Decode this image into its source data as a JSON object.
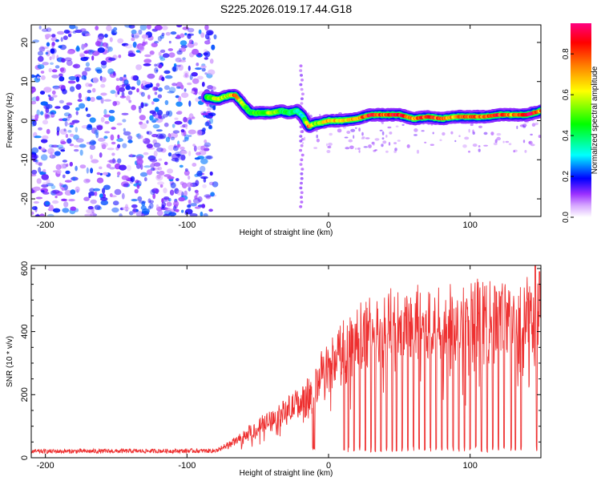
{
  "title": "S225.2026.019.17.44.G18",
  "chart_data": [
    {
      "type": "heatmap",
      "xlabel": "Height of straight line (km)",
      "ylabel": "Frequency (Hz)",
      "xlim": [
        -210,
        150
      ],
      "ylim": [
        -24.5,
        24.5
      ],
      "x_ticks": [
        -200,
        -100,
        0,
        100
      ],
      "y_ticks": [
        -20,
        -10,
        0,
        10,
        20
      ],
      "colorbar": {
        "label": "Normalized spectral amplitude",
        "range": [
          0,
          0.95
        ],
        "ticks": [
          0.0,
          0.2,
          0.4,
          0.6,
          0.8
        ],
        "colors": [
          "#ffffff",
          "#d7a8ff",
          "#9b30ff",
          "#0000ff",
          "#00ffff",
          "#00ff00",
          "#ffff00",
          "#ff8000",
          "#ff0000",
          "#ff0080"
        ]
      },
      "noise_region": {
        "x": [
          -210,
          -80
        ],
        "amplitude": [
          0.05,
          0.25
        ]
      },
      "vertical_feature": {
        "x": -19,
        "y": [
          -22,
          15
        ]
      },
      "ridge": {
        "x": [
          -86,
          -78,
          -70,
          -66,
          -60,
          -55,
          -48,
          -40,
          -34,
          -28,
          -22,
          -18,
          -14,
          -10,
          -5,
          0,
          10,
          20,
          30,
          40,
          50,
          60,
          70,
          80,
          90,
          100,
          110,
          120,
          130,
          140,
          150
        ],
        "y": [
          6,
          5.5,
          6.5,
          6.5,
          4,
          2,
          2,
          2,
          2.5,
          2,
          2.5,
          1,
          -1.5,
          -0.8,
          -0.5,
          0,
          0,
          0.5,
          1.5,
          1.5,
          1.5,
          0.5,
          1,
          0.5,
          1,
          1,
          1,
          1.5,
          1.5,
          1.5,
          2.5
        ],
        "amplitude": [
          0.45,
          0.6,
          0.55,
          0.85,
          0.5,
          0.45,
          0.5,
          0.55,
          0.45,
          0.4,
          0.35,
          0.3,
          0.85,
          0.5,
          0.55,
          0.7,
          0.6,
          0.7,
          0.85,
          0.75,
          0.9,
          0.7,
          0.85,
          0.75,
          0.7,
          0.8,
          0.75,
          0.85,
          0.7,
          0.9,
          0.7
        ]
      }
    },
    {
      "type": "line",
      "xlabel": "Height of straight line (km)",
      "ylabel": "SNR (10 * v/v)",
      "xlim": [
        -210,
        150
      ],
      "ylim": [
        0,
        610
      ],
      "x_ticks": [
        -200,
        -100,
        0,
        100
      ],
      "y_ticks": [
        0,
        200,
        400,
        600
      ],
      "series": [
        {
          "name": "SNR",
          "color": "#ee3030",
          "envelope": {
            "x": [
              -210,
              -80,
              -72,
              -60,
              -50,
              -40,
              -30,
              -20,
              -12,
              -8,
              -4,
              0,
              5,
              10,
              15,
              20,
              30,
              40,
              50,
              60,
              70,
              80,
              90,
              100,
              110,
              120,
              130,
              140,
              150
            ],
            "y": [
              20,
              22,
              40,
              70,
              100,
              130,
              155,
              185,
              210,
              250,
              290,
              300,
              330,
              360,
              385,
              400,
              420,
              430,
              440,
              445,
              450,
              450,
              455,
              460,
              460,
              465,
              465,
              470,
              470
            ]
          },
          "dropouts": [
            -11,
            -10,
            11,
            14,
            18,
            22,
            26,
            30,
            33,
            37,
            41,
            45,
            48,
            52,
            56,
            60,
            64,
            68,
            72,
            76,
            80,
            84,
            88,
            92,
            96,
            100,
            104,
            108,
            112,
            116,
            120,
            124,
            129,
            132,
            136,
            147
          ],
          "spikes": [
            {
              "x": 146,
              "y": 610
            },
            {
              "x": 149,
              "y": 590
            }
          ]
        }
      ]
    }
  ]
}
